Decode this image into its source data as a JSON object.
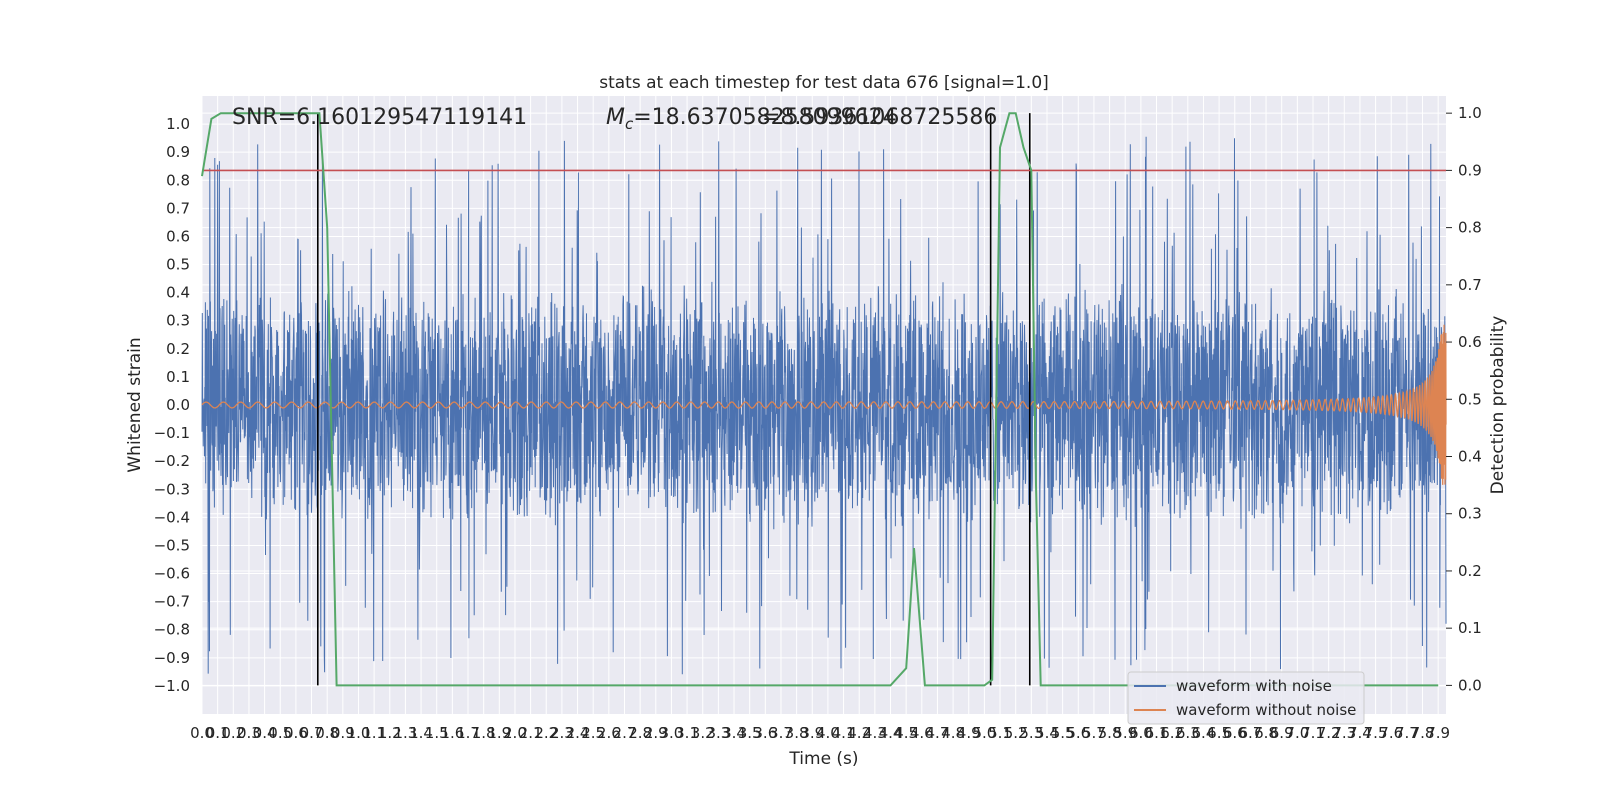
{
  "chart_data": {
    "type": "line",
    "title": "stats at each timestep for test data 676 [signal=1.0]",
    "xlabel": "Time (s)",
    "ylabel": "Whitened strain",
    "y2label": "Detection probability",
    "xlim": [
      0.0,
      7.95
    ],
    "ylim": [
      -1.1,
      1.1
    ],
    "y2lim": [
      -0.05,
      1.03
    ],
    "grid": true,
    "legend_position": "bottom-right",
    "x_tick_step": 0.1,
    "y_ticks": [
      -1.0,
      -0.9,
      -0.8,
      -0.7,
      -0.6,
      -0.5,
      -0.4,
      -0.3,
      -0.2,
      -0.1,
      0.0,
      0.1,
      0.2,
      0.3,
      0.4,
      0.5,
      0.6,
      0.7,
      0.8,
      0.9,
      1.0
    ],
    "y2_ticks": [
      0.0,
      0.1,
      0.2,
      0.3,
      0.4,
      0.5,
      0.6,
      0.7,
      0.8,
      0.9,
      1.0
    ],
    "annotations": {
      "snr": "SNR=6.160129547119141",
      "mc_prefix": "M",
      "mc_sub": "c",
      "mc_value": "=18.637058258099624",
      "overlap": "=8.59361068725586"
    },
    "threshold": {
      "value": 0.9,
      "axis": "y2",
      "color": "#c44e52"
    },
    "detection_markers_x": [
      0.74,
      5.04,
      5.29
    ],
    "series": [
      {
        "name": "waveform with noise",
        "color": "#4c72b0",
        "axis": "y",
        "kind": "noise",
        "envelope_typical": 0.45,
        "envelope_max": 0.96,
        "envelope_min": -1.0
      },
      {
        "name": "waveform without noise",
        "color": "#dd8452",
        "axis": "y",
        "kind": "chirp",
        "amplitude_start": 0.01,
        "amplitude_end": 0.31,
        "merger_time": 7.93
      },
      {
        "color": "#55a868",
        "axis": "y2",
        "x": [
          0.0,
          0.06,
          0.12,
          0.5,
          0.72,
          0.75,
          0.8,
          0.86,
          1.0,
          2.0,
          3.0,
          4.0,
          4.4,
          4.5,
          4.55,
          4.62,
          4.7,
          4.8,
          4.9,
          5.0,
          5.05,
          5.1,
          5.16,
          5.2,
          5.25,
          5.3,
          5.33,
          5.36,
          6.0,
          7.0,
          7.9
        ],
        "values": [
          0.89,
          0.99,
          1.0,
          1.0,
          1.0,
          1.0,
          0.8,
          0.0,
          0.0,
          0.0,
          0.0,
          0.0,
          0.0,
          0.03,
          0.24,
          0.0,
          0.0,
          0.0,
          0.0,
          0.0,
          0.01,
          0.94,
          1.0,
          1.0,
          0.94,
          0.9,
          0.35,
          0.0,
          0.0,
          0.0,
          0.0
        ]
      }
    ]
  }
}
